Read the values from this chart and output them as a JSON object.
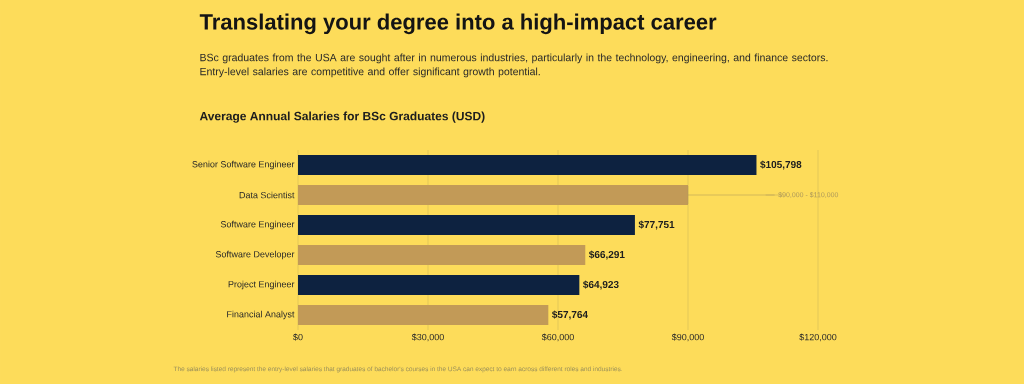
{
  "chart_data": {
    "type": "bar",
    "orientation": "horizontal",
    "title": "Translating your degree into a high-impact career",
    "subtitle": "BSc graduates from the USA are sought after in numerous industries, particularly in the technology, engineering, and finance sectors. Entry-level salaries are competitive and offer significant growth potential.",
    "categories": [
      "Senior Software Engineer",
      "Data Scientist",
      "Software Engineer",
      "Software Developer",
      "Project Engineer",
      "Financial Analyst"
    ],
    "values": [
      105798,
      90000,
      77751,
      66291,
      64923,
      57764
    ],
    "colors": [
      "#0d2240",
      "#c29a57",
      "#0d2240",
      "#c29a57",
      "#0d2240",
      "#c29a57"
    ],
    "value_labels": [
      "$105,798",
      null,
      "$77,751",
      "$66,291",
      "$64,923",
      "$57,764"
    ],
    "errors": [
      null,
      [
        90000,
        110000
      ],
      null,
      null,
      null,
      null
    ],
    "xlim": [
      0,
      120000
    ],
    "xticks": [
      {
        "value": 0,
        "label": "$0"
      },
      {
        "value": 30000,
        "label": "$30,000"
      },
      {
        "value": 60000,
        "label": "$60,000"
      },
      {
        "value": 90000,
        "label": "$90,000"
      },
      {
        "value": 120000,
        "label": "$120,000"
      }
    ],
    "grid": "x",
    "annotations": [
      "Average Annual Salaries for BSc Graduates (USD)",
      "The salaries listed represent the entry-level salaries that graduates of bachelor's courses in the USA can expect to earn across different roles and industries.",
      {
        "text": "$90,000 - $110,000",
        "x": 110000,
        "y": "Data Scientist"
      }
    ]
  }
}
